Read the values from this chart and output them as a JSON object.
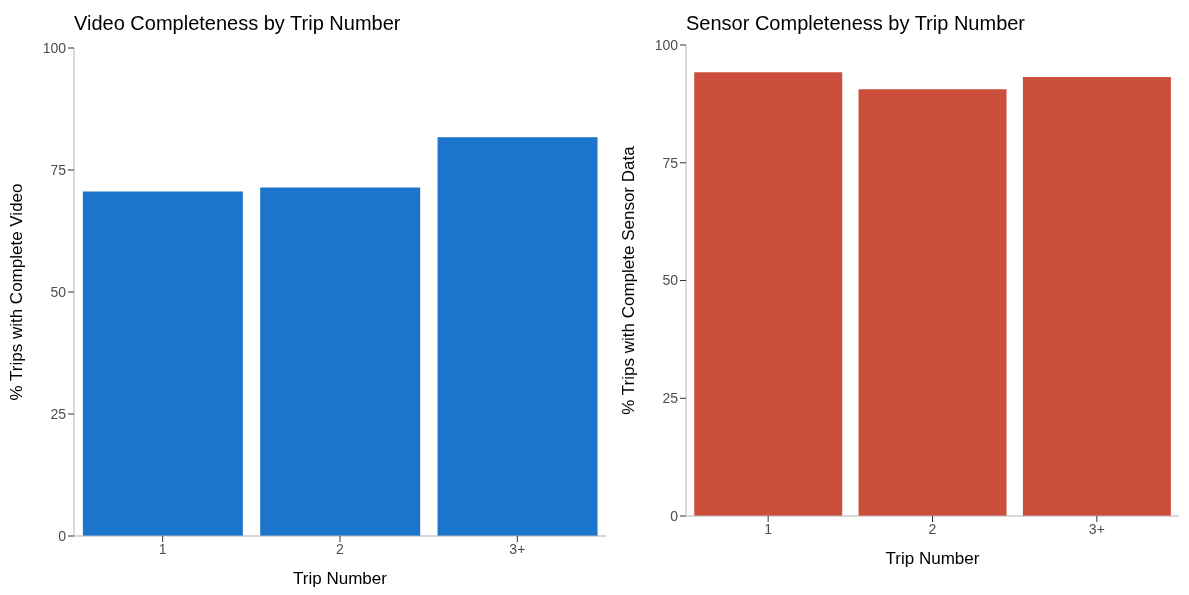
{
  "chart_data": [
    {
      "type": "bar",
      "title": "Video Completeness by Trip Number",
      "xlabel": "Trip Number",
      "ylabel": "% Trips with Complete Video",
      "categories": [
        "1",
        "2",
        "3+"
      ],
      "values": [
        70.6,
        71.4,
        81.7
      ],
      "color": "#1b75cd",
      "ylim": [
        0,
        100
      ],
      "yticks": [
        0,
        25,
        50,
        75,
        100
      ],
      "grid": false,
      "legend": false
    },
    {
      "type": "bar",
      "title": "Sensor Completeness by Trip Number",
      "xlabel": "Trip Number",
      "ylabel": "% Trips with Complete Sensor Data",
      "categories": [
        "1",
        "2",
        "3+"
      ],
      "values": [
        94.2,
        90.6,
        93.2
      ],
      "color": "#cc4f3b",
      "ylim": [
        0,
        100
      ],
      "yticks": [
        0,
        25,
        50,
        75,
        100
      ],
      "grid": false,
      "legend": false
    }
  ]
}
